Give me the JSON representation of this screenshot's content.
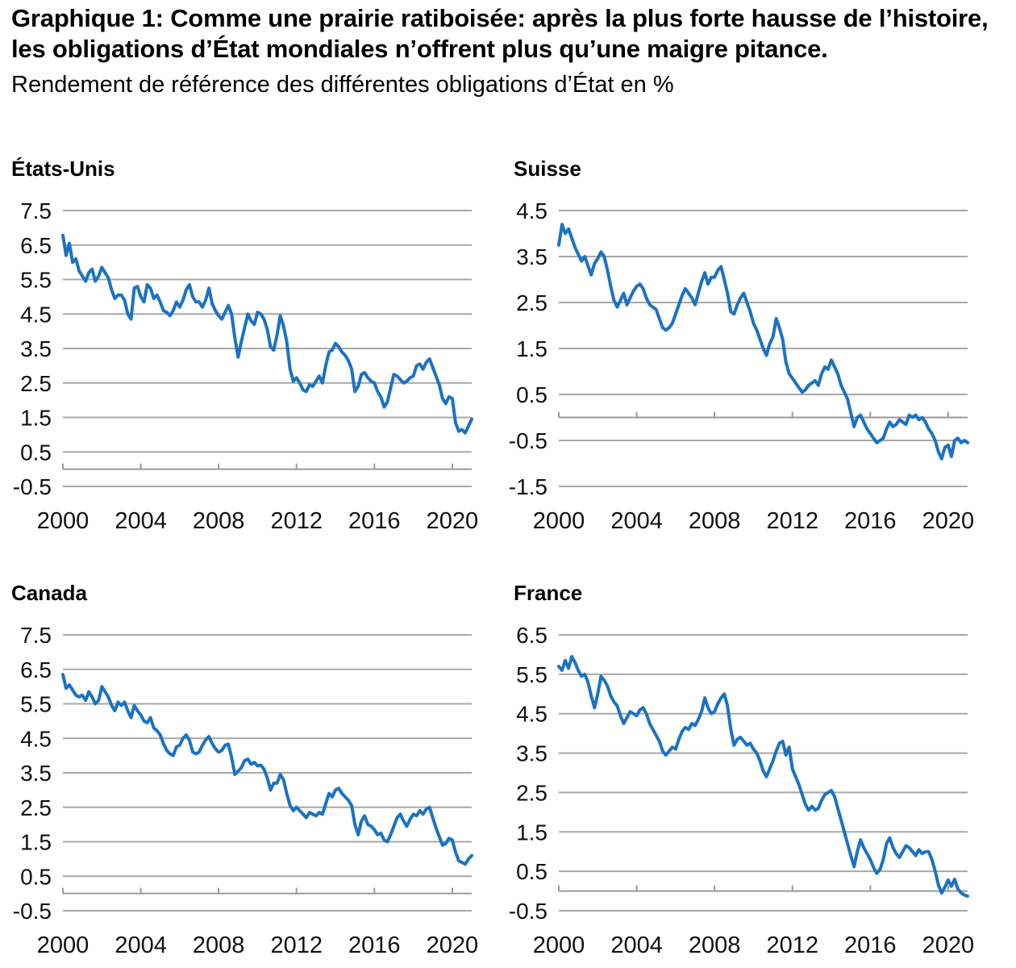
{
  "header": {
    "title": "Graphique 1: Comme une prairie ratiboisée: après la plus forte hausse de l’histoire, les obligations d’État mondiales n’offrent plus qu’une maigre pitance.",
    "subtitle": "Rendement de référence des différentes obligations d’État en %"
  },
  "colors": {
    "line": "#1c72c2",
    "grid": "#a8a8a8",
    "axis": "#9a9a9a",
    "text": "#111111"
  },
  "chart_data": [
    {
      "type": "line",
      "title": "États-Unis",
      "unit": "%",
      "grid": true,
      "x_ticks": [
        2000,
        2004,
        2008,
        2012,
        2016,
        2020
      ],
      "y_ticks": [
        7.5,
        6.5,
        5.5,
        4.5,
        3.5,
        2.5,
        1.5,
        0.5,
        -0.5
      ],
      "xlim": [
        2000,
        2021
      ],
      "ylim": [
        -0.5,
        7.5
      ],
      "x_start": 2000,
      "x_step": 0.1666667,
      "values": [
        6.78,
        6.2,
        6.55,
        6.0,
        6.1,
        5.75,
        5.6,
        5.45,
        5.7,
        5.8,
        5.45,
        5.6,
        5.85,
        5.7,
        5.55,
        5.2,
        4.95,
        5.05,
        5.05,
        4.9,
        4.5,
        4.35,
        5.25,
        5.3,
        5.0,
        4.85,
        5.35,
        5.25,
        4.95,
        5.05,
        4.85,
        4.6,
        4.55,
        4.45,
        4.6,
        4.85,
        4.7,
        4.9,
        5.2,
        5.35,
        5.0,
        4.85,
        4.85,
        4.7,
        4.9,
        5.25,
        4.8,
        4.6,
        4.45,
        4.35,
        4.55,
        4.75,
        4.5,
        3.8,
        3.25,
        3.7,
        4.1,
        4.5,
        4.3,
        4.2,
        4.55,
        4.5,
        4.35,
        4.05,
        3.55,
        3.45,
        3.9,
        4.45,
        4.15,
        3.7,
        2.9,
        2.55,
        2.65,
        2.5,
        2.3,
        2.25,
        2.45,
        2.4,
        2.55,
        2.7,
        2.5,
        3.0,
        3.4,
        3.45,
        3.65,
        3.55,
        3.4,
        3.3,
        3.15,
        2.9,
        2.25,
        2.4,
        2.75,
        2.8,
        2.65,
        2.55,
        2.5,
        2.25,
        2.1,
        1.8,
        1.95,
        2.35,
        2.75,
        2.7,
        2.6,
        2.5,
        2.55,
        2.65,
        2.7,
        3.0,
        3.05,
        2.9,
        3.1,
        3.2,
        2.95,
        2.7,
        2.45,
        2.05,
        1.9,
        2.1,
        2.05,
        1.35,
        1.1,
        1.15,
        1.05,
        1.25,
        1.45
      ]
    },
    {
      "type": "line",
      "title": "Suisse",
      "unit": "%",
      "grid": true,
      "x_ticks": [
        2000,
        2004,
        2008,
        2012,
        2016,
        2020
      ],
      "y_ticks": [
        4.5,
        3.5,
        2.5,
        1.5,
        0.5,
        -0.5,
        -1.5
      ],
      "xlim": [
        2000,
        2021
      ],
      "ylim": [
        -1.5,
        4.5
      ],
      "x_start": 2000,
      "x_step": 0.1666667,
      "values": [
        3.75,
        4.2,
        4.0,
        4.1,
        3.9,
        3.7,
        3.55,
        3.4,
        3.5,
        3.3,
        3.1,
        3.35,
        3.45,
        3.6,
        3.5,
        3.2,
        2.85,
        2.55,
        2.4,
        2.55,
        2.7,
        2.45,
        2.6,
        2.75,
        2.85,
        2.9,
        2.8,
        2.6,
        2.45,
        2.4,
        2.35,
        2.15,
        1.95,
        1.9,
        1.95,
        2.05,
        2.25,
        2.45,
        2.65,
        2.8,
        2.7,
        2.6,
        2.45,
        2.7,
        2.95,
        3.15,
        2.9,
        3.05,
        3.05,
        3.2,
        3.28,
        3.0,
        2.7,
        2.3,
        2.25,
        2.45,
        2.6,
        2.7,
        2.5,
        2.3,
        2.05,
        1.9,
        1.7,
        1.5,
        1.35,
        1.6,
        1.75,
        2.15,
        1.95,
        1.7,
        1.2,
        0.95,
        0.85,
        0.75,
        0.65,
        0.55,
        0.6,
        0.7,
        0.75,
        0.8,
        0.7,
        0.95,
        1.1,
        1.05,
        1.25,
        1.1,
        0.95,
        0.7,
        0.55,
        0.4,
        0.1,
        -0.2,
        0.0,
        0.05,
        -0.1,
        -0.25,
        -0.35,
        -0.45,
        -0.55,
        -0.5,
        -0.45,
        -0.25,
        -0.1,
        -0.2,
        -0.15,
        -0.05,
        -0.1,
        -0.15,
        0.05,
        0.0,
        0.05,
        -0.05,
        0.0,
        -0.1,
        -0.25,
        -0.35,
        -0.5,
        -0.75,
        -0.9,
        -0.65,
        -0.6,
        -0.85,
        -0.5,
        -0.45,
        -0.55,
        -0.5,
        -0.55
      ]
    },
    {
      "type": "line",
      "title": "Canada",
      "unit": "%",
      "grid": true,
      "x_ticks": [
        2000,
        2004,
        2008,
        2012,
        2016,
        2020
      ],
      "y_ticks": [
        7.5,
        6.5,
        5.5,
        4.5,
        3.5,
        2.5,
        1.5,
        0.5,
        -0.5
      ],
      "xlim": [
        2000,
        2021
      ],
      "ylim": [
        -0.5,
        7.5
      ],
      "x_start": 2000,
      "x_step": 0.1666667,
      "values": [
        6.35,
        5.95,
        6.05,
        5.9,
        5.75,
        5.7,
        5.75,
        5.6,
        5.85,
        5.7,
        5.5,
        5.6,
        6.0,
        5.85,
        5.7,
        5.45,
        5.3,
        5.55,
        5.45,
        5.55,
        5.3,
        5.1,
        5.45,
        5.3,
        5.18,
        5.0,
        4.95,
        5.1,
        4.8,
        4.72,
        4.6,
        4.35,
        4.15,
        4.05,
        4.0,
        4.25,
        4.3,
        4.5,
        4.6,
        4.45,
        4.1,
        4.05,
        4.1,
        4.3,
        4.45,
        4.55,
        4.35,
        4.2,
        4.1,
        4.15,
        4.3,
        4.33,
        3.95,
        3.45,
        3.55,
        3.65,
        3.85,
        3.9,
        3.75,
        3.8,
        3.7,
        3.72,
        3.6,
        3.35,
        3.0,
        3.2,
        3.2,
        3.45,
        3.3,
        2.9,
        2.55,
        2.4,
        2.5,
        2.4,
        2.3,
        2.2,
        2.35,
        2.3,
        2.25,
        2.35,
        2.3,
        2.6,
        2.9,
        2.8,
        3.0,
        3.05,
        2.9,
        2.8,
        2.7,
        2.55,
        2.0,
        1.7,
        2.1,
        2.25,
        2.0,
        1.95,
        1.85,
        1.7,
        1.75,
        1.55,
        1.5,
        1.7,
        1.95,
        2.2,
        2.3,
        2.1,
        1.95,
        2.15,
        2.3,
        2.25,
        2.4,
        2.3,
        2.45,
        2.5,
        2.2,
        1.9,
        1.65,
        1.4,
        1.45,
        1.6,
        1.55,
        1.2,
        0.95,
        0.9,
        0.85,
        1.0,
        1.1
      ]
    },
    {
      "type": "line",
      "title": "France",
      "unit": "%",
      "grid": true,
      "x_ticks": [
        2000,
        2004,
        2008,
        2012,
        2016,
        2020
      ],
      "y_ticks": [
        6.5,
        5.5,
        4.5,
        3.5,
        2.5,
        1.5,
        0.5,
        -0.5
      ],
      "xlim": [
        2000,
        2021
      ],
      "ylim": [
        -0.5,
        6.5
      ],
      "x_start": 2000,
      "x_step": 0.1666667,
      "values": [
        5.7,
        5.6,
        5.85,
        5.65,
        5.95,
        5.8,
        5.6,
        5.45,
        5.5,
        5.3,
        4.95,
        4.65,
        5.0,
        5.45,
        5.35,
        5.2,
        4.95,
        4.8,
        4.7,
        4.45,
        4.25,
        4.4,
        4.55,
        4.5,
        4.45,
        4.6,
        4.65,
        4.5,
        4.25,
        4.1,
        3.95,
        3.8,
        3.55,
        3.45,
        3.55,
        3.65,
        3.6,
        3.85,
        4.05,
        4.15,
        4.1,
        4.25,
        4.2,
        4.35,
        4.55,
        4.9,
        4.65,
        4.5,
        4.55,
        4.75,
        4.9,
        5.0,
        4.7,
        4.1,
        3.7,
        3.85,
        3.9,
        3.8,
        3.7,
        3.75,
        3.6,
        3.5,
        3.3,
        3.05,
        2.9,
        3.1,
        3.3,
        3.55,
        3.75,
        3.8,
        3.45,
        3.65,
        3.1,
        2.9,
        2.7,
        2.45,
        2.2,
        2.05,
        2.15,
        2.05,
        2.1,
        2.3,
        2.45,
        2.5,
        2.55,
        2.4,
        2.1,
        1.8,
        1.5,
        1.2,
        0.9,
        0.62,
        1.0,
        1.3,
        1.1,
        0.95,
        0.8,
        0.6,
        0.45,
        0.55,
        0.8,
        1.2,
        1.35,
        1.1,
        0.95,
        0.85,
        1.0,
        1.15,
        1.1,
        1.0,
        0.9,
        1.05,
        0.95,
        1.0,
        1.0,
        0.8,
        0.5,
        0.15,
        -0.05,
        0.1,
        0.28,
        0.12,
        0.3,
        0.05,
        -0.05,
        -0.1,
        -0.13
      ]
    }
  ]
}
